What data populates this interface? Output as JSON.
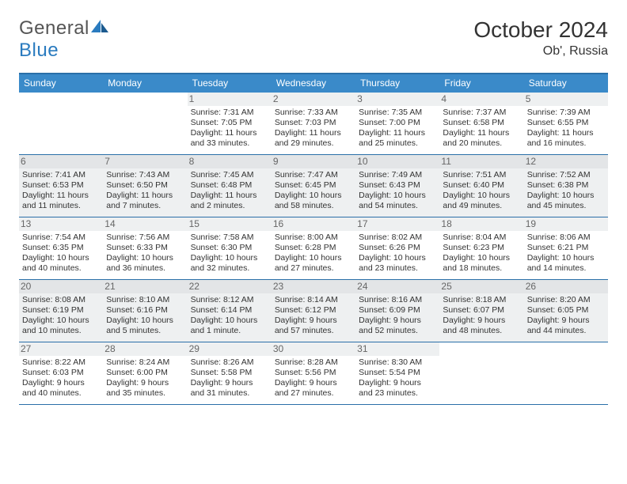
{
  "logo": {
    "textA": "General",
    "textB": "Blue"
  },
  "title": "October 2024",
  "location": "Ob', Russia",
  "colors": {
    "header_bg": "#3a8ac9",
    "header_border": "#2a6fa8",
    "alt_bg": "#eef0f1",
    "text": "#333333",
    "white": "#ffffff"
  },
  "dayNames": [
    "Sunday",
    "Monday",
    "Tuesday",
    "Wednesday",
    "Thursday",
    "Friday",
    "Saturday"
  ],
  "weeks": [
    [
      null,
      null,
      {
        "n": "1",
        "sr": "Sunrise: 7:31 AM",
        "ss": "Sunset: 7:05 PM",
        "dl": "Daylight: 11 hours and 33 minutes."
      },
      {
        "n": "2",
        "sr": "Sunrise: 7:33 AM",
        "ss": "Sunset: 7:03 PM",
        "dl": "Daylight: 11 hours and 29 minutes."
      },
      {
        "n": "3",
        "sr": "Sunrise: 7:35 AM",
        "ss": "Sunset: 7:00 PM",
        "dl": "Daylight: 11 hours and 25 minutes."
      },
      {
        "n": "4",
        "sr": "Sunrise: 7:37 AM",
        "ss": "Sunset: 6:58 PM",
        "dl": "Daylight: 11 hours and 20 minutes."
      },
      {
        "n": "5",
        "sr": "Sunrise: 7:39 AM",
        "ss": "Sunset: 6:55 PM",
        "dl": "Daylight: 11 hours and 16 minutes."
      }
    ],
    [
      {
        "n": "6",
        "sr": "Sunrise: 7:41 AM",
        "ss": "Sunset: 6:53 PM",
        "dl": "Daylight: 11 hours and 11 minutes."
      },
      {
        "n": "7",
        "sr": "Sunrise: 7:43 AM",
        "ss": "Sunset: 6:50 PM",
        "dl": "Daylight: 11 hours and 7 minutes."
      },
      {
        "n": "8",
        "sr": "Sunrise: 7:45 AM",
        "ss": "Sunset: 6:48 PM",
        "dl": "Daylight: 11 hours and 2 minutes."
      },
      {
        "n": "9",
        "sr": "Sunrise: 7:47 AM",
        "ss": "Sunset: 6:45 PM",
        "dl": "Daylight: 10 hours and 58 minutes."
      },
      {
        "n": "10",
        "sr": "Sunrise: 7:49 AM",
        "ss": "Sunset: 6:43 PM",
        "dl": "Daylight: 10 hours and 54 minutes."
      },
      {
        "n": "11",
        "sr": "Sunrise: 7:51 AM",
        "ss": "Sunset: 6:40 PM",
        "dl": "Daylight: 10 hours and 49 minutes."
      },
      {
        "n": "12",
        "sr": "Sunrise: 7:52 AM",
        "ss": "Sunset: 6:38 PM",
        "dl": "Daylight: 10 hours and 45 minutes."
      }
    ],
    [
      {
        "n": "13",
        "sr": "Sunrise: 7:54 AM",
        "ss": "Sunset: 6:35 PM",
        "dl": "Daylight: 10 hours and 40 minutes."
      },
      {
        "n": "14",
        "sr": "Sunrise: 7:56 AM",
        "ss": "Sunset: 6:33 PM",
        "dl": "Daylight: 10 hours and 36 minutes."
      },
      {
        "n": "15",
        "sr": "Sunrise: 7:58 AM",
        "ss": "Sunset: 6:30 PM",
        "dl": "Daylight: 10 hours and 32 minutes."
      },
      {
        "n": "16",
        "sr": "Sunrise: 8:00 AM",
        "ss": "Sunset: 6:28 PM",
        "dl": "Daylight: 10 hours and 27 minutes."
      },
      {
        "n": "17",
        "sr": "Sunrise: 8:02 AM",
        "ss": "Sunset: 6:26 PM",
        "dl": "Daylight: 10 hours and 23 minutes."
      },
      {
        "n": "18",
        "sr": "Sunrise: 8:04 AM",
        "ss": "Sunset: 6:23 PM",
        "dl": "Daylight: 10 hours and 18 minutes."
      },
      {
        "n": "19",
        "sr": "Sunrise: 8:06 AM",
        "ss": "Sunset: 6:21 PM",
        "dl": "Daylight: 10 hours and 14 minutes."
      }
    ],
    [
      {
        "n": "20",
        "sr": "Sunrise: 8:08 AM",
        "ss": "Sunset: 6:19 PM",
        "dl": "Daylight: 10 hours and 10 minutes."
      },
      {
        "n": "21",
        "sr": "Sunrise: 8:10 AM",
        "ss": "Sunset: 6:16 PM",
        "dl": "Daylight: 10 hours and 5 minutes."
      },
      {
        "n": "22",
        "sr": "Sunrise: 8:12 AM",
        "ss": "Sunset: 6:14 PM",
        "dl": "Daylight: 10 hours and 1 minute."
      },
      {
        "n": "23",
        "sr": "Sunrise: 8:14 AM",
        "ss": "Sunset: 6:12 PM",
        "dl": "Daylight: 9 hours and 57 minutes."
      },
      {
        "n": "24",
        "sr": "Sunrise: 8:16 AM",
        "ss": "Sunset: 6:09 PM",
        "dl": "Daylight: 9 hours and 52 minutes."
      },
      {
        "n": "25",
        "sr": "Sunrise: 8:18 AM",
        "ss": "Sunset: 6:07 PM",
        "dl": "Daylight: 9 hours and 48 minutes."
      },
      {
        "n": "26",
        "sr": "Sunrise: 8:20 AM",
        "ss": "Sunset: 6:05 PM",
        "dl": "Daylight: 9 hours and 44 minutes."
      }
    ],
    [
      {
        "n": "27",
        "sr": "Sunrise: 8:22 AM",
        "ss": "Sunset: 6:03 PM",
        "dl": "Daylight: 9 hours and 40 minutes."
      },
      {
        "n": "28",
        "sr": "Sunrise: 8:24 AM",
        "ss": "Sunset: 6:00 PM",
        "dl": "Daylight: 9 hours and 35 minutes."
      },
      {
        "n": "29",
        "sr": "Sunrise: 8:26 AM",
        "ss": "Sunset: 5:58 PM",
        "dl": "Daylight: 9 hours and 31 minutes."
      },
      {
        "n": "30",
        "sr": "Sunrise: 8:28 AM",
        "ss": "Sunset: 5:56 PM",
        "dl": "Daylight: 9 hours and 27 minutes."
      },
      {
        "n": "31",
        "sr": "Sunrise: 8:30 AM",
        "ss": "Sunset: 5:54 PM",
        "dl": "Daylight: 9 hours and 23 minutes."
      },
      null,
      null
    ]
  ]
}
